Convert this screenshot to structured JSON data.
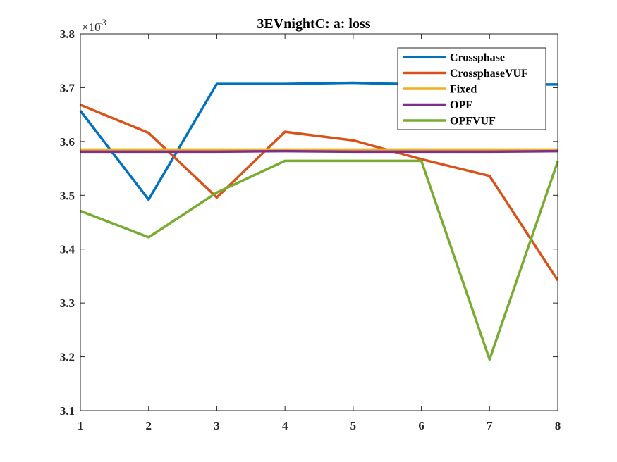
{
  "chart_data": {
    "type": "line",
    "title": "3EVnightC: a: loss",
    "xlabel": "",
    "ylabel": "",
    "y_exponent_label": "×10",
    "y_exponent_power": "-3",
    "xlim": [
      1,
      8
    ],
    "ylim": [
      3.1,
      3.8
    ],
    "xticks": [
      "1",
      "2",
      "3",
      "4",
      "5",
      "6",
      "7",
      "8"
    ],
    "yticks": [
      "3.1",
      "3.2",
      "3.3",
      "3.4",
      "3.5",
      "3.6",
      "3.7",
      "3.8"
    ],
    "grid": false,
    "legend_position": "top-right",
    "x": [
      1,
      2,
      3,
      4,
      5,
      6,
      7,
      8
    ],
    "series": [
      {
        "name": "Crossphase",
        "color": "#0072BD",
        "values": [
          3.657,
          3.492,
          3.707,
          3.707,
          3.709,
          3.706,
          3.706,
          3.706
        ]
      },
      {
        "name": "CrossphaseVUF",
        "color": "#D95319",
        "values": [
          3.668,
          3.616,
          3.496,
          3.618,
          3.602,
          3.567,
          3.536,
          3.342
        ]
      },
      {
        "name": "Fixed",
        "color": "#EDB120",
        "values": [
          3.585,
          3.585,
          3.585,
          3.585,
          3.585,
          3.585,
          3.585,
          3.585
        ]
      },
      {
        "name": "OPF",
        "color": "#7E2F8E",
        "values": [
          3.581,
          3.581,
          3.581,
          3.582,
          3.581,
          3.581,
          3.581,
          3.582
        ]
      },
      {
        "name": "OPFVUF",
        "color": "#77AC30",
        "values": [
          3.471,
          3.422,
          3.505,
          3.564,
          3.564,
          3.564,
          3.195,
          3.563
        ]
      }
    ]
  }
}
